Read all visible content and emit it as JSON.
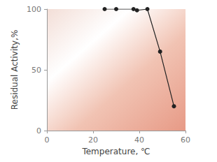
{
  "chart_data": {
    "type": "line",
    "x": [
      25,
      30,
      37.5,
      39,
      43.5,
      49,
      55
    ],
    "values": [
      100,
      100,
      100,
      99,
      100,
      65,
      20
    ],
    "xlabel": "Temperature, ℃",
    "ylabel": "Residual Activity,%",
    "xlim": [
      0,
      60
    ],
    "xticks": [
      0,
      20,
      40,
      60
    ],
    "ylim": [
      0,
      100
    ],
    "yticks": [
      0,
      50,
      100
    ],
    "color": "#222222",
    "marker": "circle",
    "grid": false
  }
}
